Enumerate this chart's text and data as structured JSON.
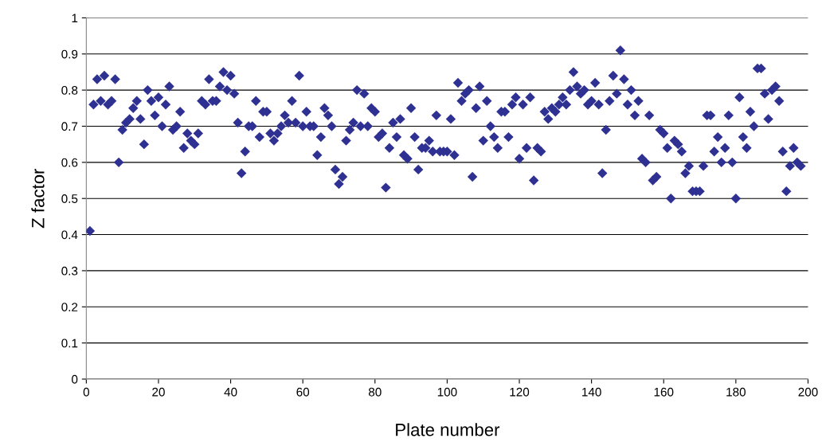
{
  "chart_data": {
    "type": "scatter",
    "xlabel": "Plate number",
    "ylabel": "Z factor",
    "x": [
      1,
      2,
      3,
      4,
      5,
      6,
      7,
      8,
      9,
      10,
      11,
      12,
      13,
      14,
      15,
      16,
      17,
      18,
      19,
      20,
      21,
      22,
      23,
      24,
      25,
      26,
      27,
      28,
      29,
      30,
      31,
      32,
      33,
      34,
      35,
      36,
      37,
      38,
      39,
      40,
      41,
      42,
      43,
      44,
      45,
      46,
      47,
      48,
      49,
      50,
      51,
      52,
      53,
      54,
      55,
      56,
      57,
      58,
      59,
      60,
      61,
      62,
      63,
      64,
      65,
      66,
      67,
      68,
      69,
      70,
      71,
      72,
      73,
      74,
      75,
      76,
      77,
      78,
      79,
      80,
      81,
      82,
      83,
      84,
      85,
      86,
      87,
      88,
      89,
      90,
      91,
      92,
      93,
      94,
      95,
      96,
      97,
      98,
      99,
      100,
      101,
      102,
      103,
      104,
      105,
      106,
      107,
      108,
      109,
      110,
      111,
      112,
      113,
      114,
      115,
      116,
      117,
      118,
      119,
      120,
      121,
      122,
      123,
      124,
      125,
      126,
      127,
      128,
      129,
      130,
      131,
      132,
      133,
      134,
      135,
      136,
      137,
      138,
      139,
      140,
      141,
      142,
      143,
      144,
      145,
      146,
      147,
      148,
      149,
      150,
      151,
      152,
      153,
      154,
      155,
      156,
      157,
      158,
      159,
      160,
      161,
      162,
      163,
      164,
      165,
      166,
      167,
      168,
      169,
      170,
      171,
      172,
      173,
      174,
      175,
      176,
      177,
      178,
      179,
      180,
      181,
      182,
      183,
      184,
      185,
      186,
      187,
      188,
      189,
      190,
      191,
      192,
      193,
      194,
      195,
      196,
      197,
      198
    ],
    "series": [
      {
        "color": "#2e3192",
        "values": [
          0.41,
          0.76,
          0.83,
          0.77,
          0.84,
          0.76,
          0.77,
          0.83,
          0.6,
          0.69,
          0.71,
          0.72,
          0.75,
          0.77,
          0.72,
          0.65,
          0.8,
          0.77,
          0.73,
          0.78,
          0.7,
          0.76,
          0.81,
          0.69,
          0.7,
          0.74,
          0.64,
          0.68,
          0.66,
          0.65,
          0.68,
          0.77,
          0.76,
          0.83,
          0.77,
          0.77,
          0.81,
          0.85,
          0.8,
          0.84,
          0.79,
          0.71,
          0.57,
          0.63,
          0.7,
          0.7,
          0.77,
          0.67,
          0.74,
          0.74,
          0.68,
          0.66,
          0.68,
          0.7,
          0.73,
          0.71,
          0.77,
          0.71,
          0.84,
          0.7,
          0.74,
          0.7,
          0.7,
          0.62,
          0.67,
          0.75,
          0.73,
          0.7,
          0.58,
          0.54,
          0.56,
          0.66,
          0.69,
          0.71,
          0.8,
          0.7,
          0.79,
          0.7,
          0.75,
          0.74,
          0.67,
          0.68,
          0.53,
          0.64,
          0.71,
          0.67,
          0.72,
          0.62,
          0.61,
          0.75,
          0.67,
          0.58,
          0.64,
          0.64,
          0.66,
          0.63,
          0.73,
          0.63,
          0.63,
          0.63,
          0.72,
          0.62,
          0.82,
          0.77,
          0.79,
          0.8,
          0.56,
          0.75,
          0.81,
          0.66,
          0.77,
          0.7,
          0.67,
          0.64,
          0.74,
          0.74,
          0.67,
          0.76,
          0.78,
          0.61,
          0.76,
          0.64,
          0.78,
          0.55,
          0.64,
          0.63,
          0.74,
          0.72,
          0.75,
          0.74,
          0.76,
          0.78,
          0.76,
          0.8,
          0.85,
          0.81,
          0.79,
          0.8,
          0.76,
          0.77,
          0.82,
          0.76,
          0.57,
          0.69,
          0.77,
          0.84,
          0.79,
          0.91,
          0.83,
          0.76,
          0.8,
          0.73,
          0.77,
          0.61,
          0.6,
          0.73,
          0.55,
          0.56,
          0.69,
          0.68,
          0.64,
          0.5,
          0.66,
          0.65,
          0.63,
          0.57,
          0.59,
          0.52,
          0.52,
          0.52,
          0.59,
          0.73,
          0.73,
          0.63,
          0.67,
          0.6,
          0.64,
          0.73,
          0.6,
          0.5,
          0.78,
          0.67,
          0.64,
          0.74,
          0.7,
          0.86,
          0.86,
          0.79,
          0.72,
          0.8,
          0.81,
          0.77,
          0.63,
          0.52,
          0.59,
          0.64,
          0.6,
          0.59
        ]
      }
    ],
    "xlim": [
      0,
      200
    ],
    "xticks": [
      0,
      20,
      40,
      60,
      80,
      100,
      120,
      140,
      160,
      180,
      200
    ],
    "ylim": [
      0,
      1
    ],
    "yticks": [
      0,
      0.1,
      0.2,
      0.3,
      0.4,
      0.5,
      0.6,
      0.7,
      0.8,
      0.9,
      1
    ],
    "grid": "y",
    "marker": "diamond"
  }
}
